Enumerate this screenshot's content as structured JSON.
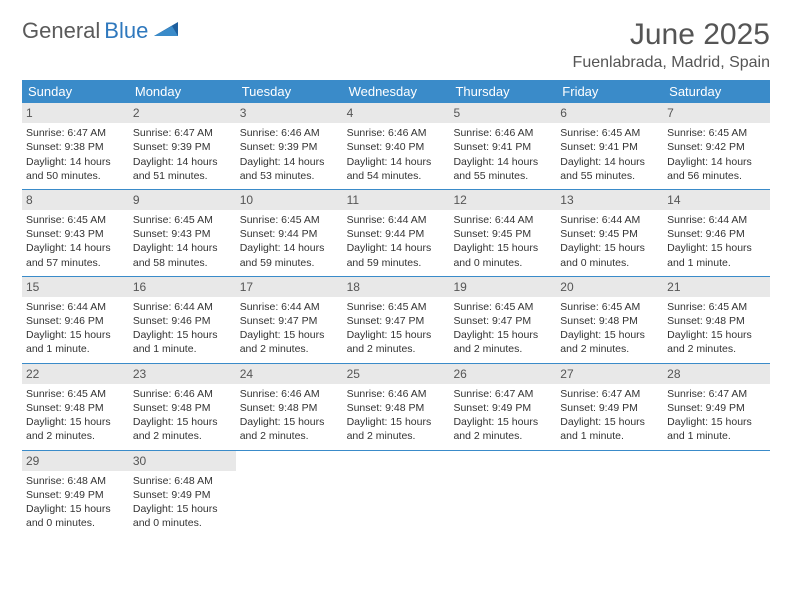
{
  "logo": {
    "text_dark": "General",
    "text_blue": "Blue"
  },
  "title": "June 2025",
  "location": "Fuenlabrada, Madrid, Spain",
  "colors": {
    "header_bg": "#3a8bc9",
    "header_text": "#ffffff",
    "day_num_bg": "#e8e8e8",
    "row_border": "#3a8bc9",
    "logo_dark": "#5a5a5a",
    "logo_blue": "#2f78bd"
  },
  "day_names": [
    "Sunday",
    "Monday",
    "Tuesday",
    "Wednesday",
    "Thursday",
    "Friday",
    "Saturday"
  ],
  "weeks": [
    [
      {
        "n": "1",
        "sunrise": "Sunrise: 6:47 AM",
        "sunset": "Sunset: 9:38 PM",
        "daylight": "Daylight: 14 hours and 50 minutes."
      },
      {
        "n": "2",
        "sunrise": "Sunrise: 6:47 AM",
        "sunset": "Sunset: 9:39 PM",
        "daylight": "Daylight: 14 hours and 51 minutes."
      },
      {
        "n": "3",
        "sunrise": "Sunrise: 6:46 AM",
        "sunset": "Sunset: 9:39 PM",
        "daylight": "Daylight: 14 hours and 53 minutes."
      },
      {
        "n": "4",
        "sunrise": "Sunrise: 6:46 AM",
        "sunset": "Sunset: 9:40 PM",
        "daylight": "Daylight: 14 hours and 54 minutes."
      },
      {
        "n": "5",
        "sunrise": "Sunrise: 6:46 AM",
        "sunset": "Sunset: 9:41 PM",
        "daylight": "Daylight: 14 hours and 55 minutes."
      },
      {
        "n": "6",
        "sunrise": "Sunrise: 6:45 AM",
        "sunset": "Sunset: 9:41 PM",
        "daylight": "Daylight: 14 hours and 55 minutes."
      },
      {
        "n": "7",
        "sunrise": "Sunrise: 6:45 AM",
        "sunset": "Sunset: 9:42 PM",
        "daylight": "Daylight: 14 hours and 56 minutes."
      }
    ],
    [
      {
        "n": "8",
        "sunrise": "Sunrise: 6:45 AM",
        "sunset": "Sunset: 9:43 PM",
        "daylight": "Daylight: 14 hours and 57 minutes."
      },
      {
        "n": "9",
        "sunrise": "Sunrise: 6:45 AM",
        "sunset": "Sunset: 9:43 PM",
        "daylight": "Daylight: 14 hours and 58 minutes."
      },
      {
        "n": "10",
        "sunrise": "Sunrise: 6:45 AM",
        "sunset": "Sunset: 9:44 PM",
        "daylight": "Daylight: 14 hours and 59 minutes."
      },
      {
        "n": "11",
        "sunrise": "Sunrise: 6:44 AM",
        "sunset": "Sunset: 9:44 PM",
        "daylight": "Daylight: 14 hours and 59 minutes."
      },
      {
        "n": "12",
        "sunrise": "Sunrise: 6:44 AM",
        "sunset": "Sunset: 9:45 PM",
        "daylight": "Daylight: 15 hours and 0 minutes."
      },
      {
        "n": "13",
        "sunrise": "Sunrise: 6:44 AM",
        "sunset": "Sunset: 9:45 PM",
        "daylight": "Daylight: 15 hours and 0 minutes."
      },
      {
        "n": "14",
        "sunrise": "Sunrise: 6:44 AM",
        "sunset": "Sunset: 9:46 PM",
        "daylight": "Daylight: 15 hours and 1 minute."
      }
    ],
    [
      {
        "n": "15",
        "sunrise": "Sunrise: 6:44 AM",
        "sunset": "Sunset: 9:46 PM",
        "daylight": "Daylight: 15 hours and 1 minute."
      },
      {
        "n": "16",
        "sunrise": "Sunrise: 6:44 AM",
        "sunset": "Sunset: 9:46 PM",
        "daylight": "Daylight: 15 hours and 1 minute."
      },
      {
        "n": "17",
        "sunrise": "Sunrise: 6:44 AM",
        "sunset": "Sunset: 9:47 PM",
        "daylight": "Daylight: 15 hours and 2 minutes."
      },
      {
        "n": "18",
        "sunrise": "Sunrise: 6:45 AM",
        "sunset": "Sunset: 9:47 PM",
        "daylight": "Daylight: 15 hours and 2 minutes."
      },
      {
        "n": "19",
        "sunrise": "Sunrise: 6:45 AM",
        "sunset": "Sunset: 9:47 PM",
        "daylight": "Daylight: 15 hours and 2 minutes."
      },
      {
        "n": "20",
        "sunrise": "Sunrise: 6:45 AM",
        "sunset": "Sunset: 9:48 PM",
        "daylight": "Daylight: 15 hours and 2 minutes."
      },
      {
        "n": "21",
        "sunrise": "Sunrise: 6:45 AM",
        "sunset": "Sunset: 9:48 PM",
        "daylight": "Daylight: 15 hours and 2 minutes."
      }
    ],
    [
      {
        "n": "22",
        "sunrise": "Sunrise: 6:45 AM",
        "sunset": "Sunset: 9:48 PM",
        "daylight": "Daylight: 15 hours and 2 minutes."
      },
      {
        "n": "23",
        "sunrise": "Sunrise: 6:46 AM",
        "sunset": "Sunset: 9:48 PM",
        "daylight": "Daylight: 15 hours and 2 minutes."
      },
      {
        "n": "24",
        "sunrise": "Sunrise: 6:46 AM",
        "sunset": "Sunset: 9:48 PM",
        "daylight": "Daylight: 15 hours and 2 minutes."
      },
      {
        "n": "25",
        "sunrise": "Sunrise: 6:46 AM",
        "sunset": "Sunset: 9:48 PM",
        "daylight": "Daylight: 15 hours and 2 minutes."
      },
      {
        "n": "26",
        "sunrise": "Sunrise: 6:47 AM",
        "sunset": "Sunset: 9:49 PM",
        "daylight": "Daylight: 15 hours and 2 minutes."
      },
      {
        "n": "27",
        "sunrise": "Sunrise: 6:47 AM",
        "sunset": "Sunset: 9:49 PM",
        "daylight": "Daylight: 15 hours and 1 minute."
      },
      {
        "n": "28",
        "sunrise": "Sunrise: 6:47 AM",
        "sunset": "Sunset: 9:49 PM",
        "daylight": "Daylight: 15 hours and 1 minute."
      }
    ],
    [
      {
        "n": "29",
        "sunrise": "Sunrise: 6:48 AM",
        "sunset": "Sunset: 9:49 PM",
        "daylight": "Daylight: 15 hours and 0 minutes."
      },
      {
        "n": "30",
        "sunrise": "Sunrise: 6:48 AM",
        "sunset": "Sunset: 9:49 PM",
        "daylight": "Daylight: 15 hours and 0 minutes."
      },
      {
        "empty": true
      },
      {
        "empty": true
      },
      {
        "empty": true
      },
      {
        "empty": true
      },
      {
        "empty": true
      }
    ]
  ]
}
